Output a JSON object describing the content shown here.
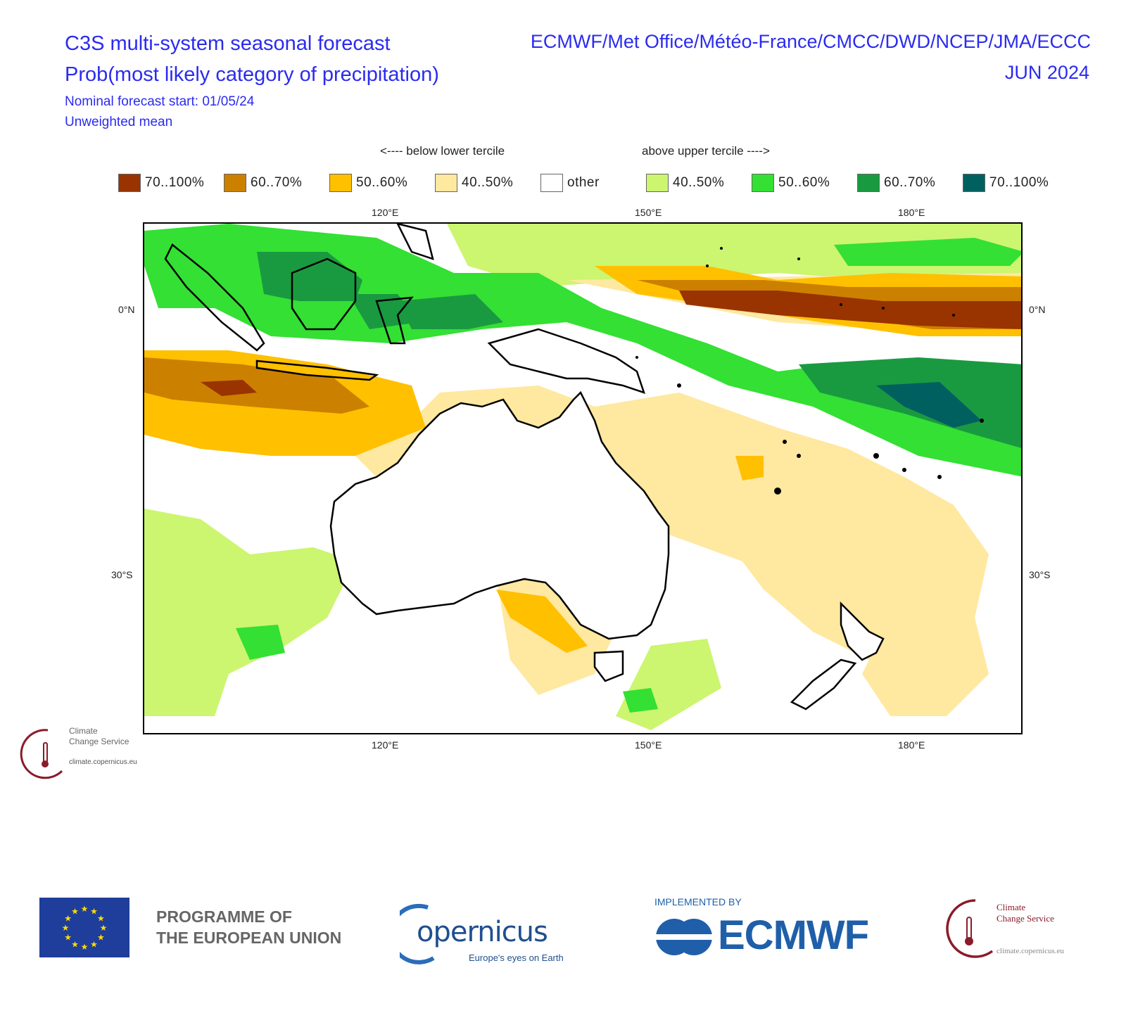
{
  "header": {
    "title_line1": "C3S multi-system seasonal forecast",
    "title_line2": "Prob(most likely category of precipitation)",
    "nominal_start": "Nominal forecast start: 01/05/24",
    "mean_type": "Unweighted mean",
    "providers": "ECMWF/Met Office/Météo-France/CMCC/DWD/NCEP/JMA/ECCC",
    "valid_month": "JUN 2024"
  },
  "legend": {
    "below_caption": "<---- below lower tercile",
    "above_caption": "above upper tercile ---->",
    "items": [
      {
        "label": "70..100%",
        "color": "#993300"
      },
      {
        "label": "60..70%",
        "color": "#cc8000"
      },
      {
        "label": "50..60%",
        "color": "#ffc000"
      },
      {
        "label": "40..50%",
        "color": "#ffe8a0"
      },
      {
        "label": "other",
        "color": "#ffffff"
      },
      {
        "label": "40..50%",
        "color": "#ccf570"
      },
      {
        "label": "50..60%",
        "color": "#33e033"
      },
      {
        "label": "60..70%",
        "color": "#1a9a40"
      },
      {
        "label": "70..100%",
        "color": "#006060"
      }
    ]
  },
  "map": {
    "projection": "lat-lon",
    "lon_ticks": [
      "120°E",
      "150°E",
      "180°E"
    ],
    "lat_ticks_left": [
      "0°N",
      "30°S"
    ],
    "lat_ticks_right": [
      "0°N",
      "30°S"
    ],
    "region": "Maritime Continent, Australia, New Zealand, Western Pacific"
  },
  "logos": {
    "c3s_name_line1": "Climate",
    "c3s_name_line2": "Change Service",
    "c3s_url": "climate.copernicus.eu"
  },
  "footer": {
    "eu_line1": "PROGRAMME OF",
    "eu_line2": "THE EUROPEAN UNION",
    "copernicus_name": "opernicus",
    "copernicus_tagline": "Europe's eyes on Earth",
    "implemented_by": "IMPLEMENTED BY",
    "ecmwf_name": "ECMWF",
    "c3s_name_line1": "Climate",
    "c3s_name_line2": "Change Service",
    "c3s_url": "climate.copernicus.eu"
  }
}
